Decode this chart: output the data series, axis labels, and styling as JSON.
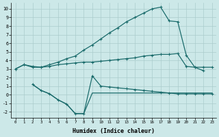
{
  "bg_color": "#cce8e8",
  "grid_color": "#aacccc",
  "line_color": "#1a6b6b",
  "xlabel": "Humidex (Indice chaleur)",
  "xlim": [
    -0.5,
    23.5
  ],
  "ylim": [
    -2.7,
    10.7
  ],
  "c1_x": [
    0,
    1,
    2,
    3,
    4,
    5,
    6,
    7,
    8,
    9,
    10,
    11,
    12,
    13,
    14,
    15,
    16,
    17,
    18,
    19,
    20,
    21,
    22
  ],
  "c1_y": [
    3.0,
    3.5,
    3.2,
    3.2,
    3.5,
    3.8,
    4.2,
    4.5,
    5.2,
    5.8,
    6.5,
    7.2,
    7.8,
    8.5,
    9.0,
    9.5,
    10.0,
    10.2,
    8.6,
    8.5,
    4.6,
    3.2,
    2.8
  ],
  "c2_x": [
    0,
    1,
    2,
    3,
    4,
    5,
    6,
    7,
    8,
    9,
    10,
    11,
    12,
    13,
    14,
    15,
    16,
    17,
    18,
    19,
    20,
    21,
    22,
    23
  ],
  "c2_y": [
    3.0,
    3.5,
    3.3,
    3.2,
    3.3,
    3.5,
    3.6,
    3.7,
    3.8,
    3.8,
    3.9,
    4.0,
    4.1,
    4.2,
    4.3,
    4.5,
    4.6,
    4.7,
    4.7,
    4.8,
    3.3,
    3.2,
    3.2,
    3.2
  ],
  "c3_x": [
    2,
    3,
    4,
    5,
    6,
    7,
    8,
    9,
    10,
    11,
    12,
    13,
    14,
    15,
    16,
    17,
    18,
    19,
    20,
    21,
    22,
    23
  ],
  "c3_y": [
    1.2,
    0.5,
    0.1,
    -0.6,
    -1.1,
    -2.2,
    -2.2,
    2.2,
    1.0,
    0.9,
    0.8,
    0.7,
    0.6,
    0.5,
    0.4,
    0.3,
    0.2,
    0.1,
    0.1,
    0.1,
    0.1,
    0.1
  ],
  "c4_x": [
    2,
    3,
    4,
    5,
    6,
    7,
    8,
    9,
    10,
    11,
    12,
    13,
    14,
    15,
    16,
    17,
    18,
    19,
    20,
    21,
    22,
    23
  ],
  "c4_y": [
    1.2,
    0.5,
    0.1,
    -0.6,
    -1.1,
    -2.2,
    -2.2,
    0.2,
    0.2,
    0.2,
    0.2,
    0.2,
    0.2,
    0.2,
    0.2,
    0.2,
    0.2,
    0.2,
    0.2,
    0.2,
    0.2,
    0.2
  ]
}
